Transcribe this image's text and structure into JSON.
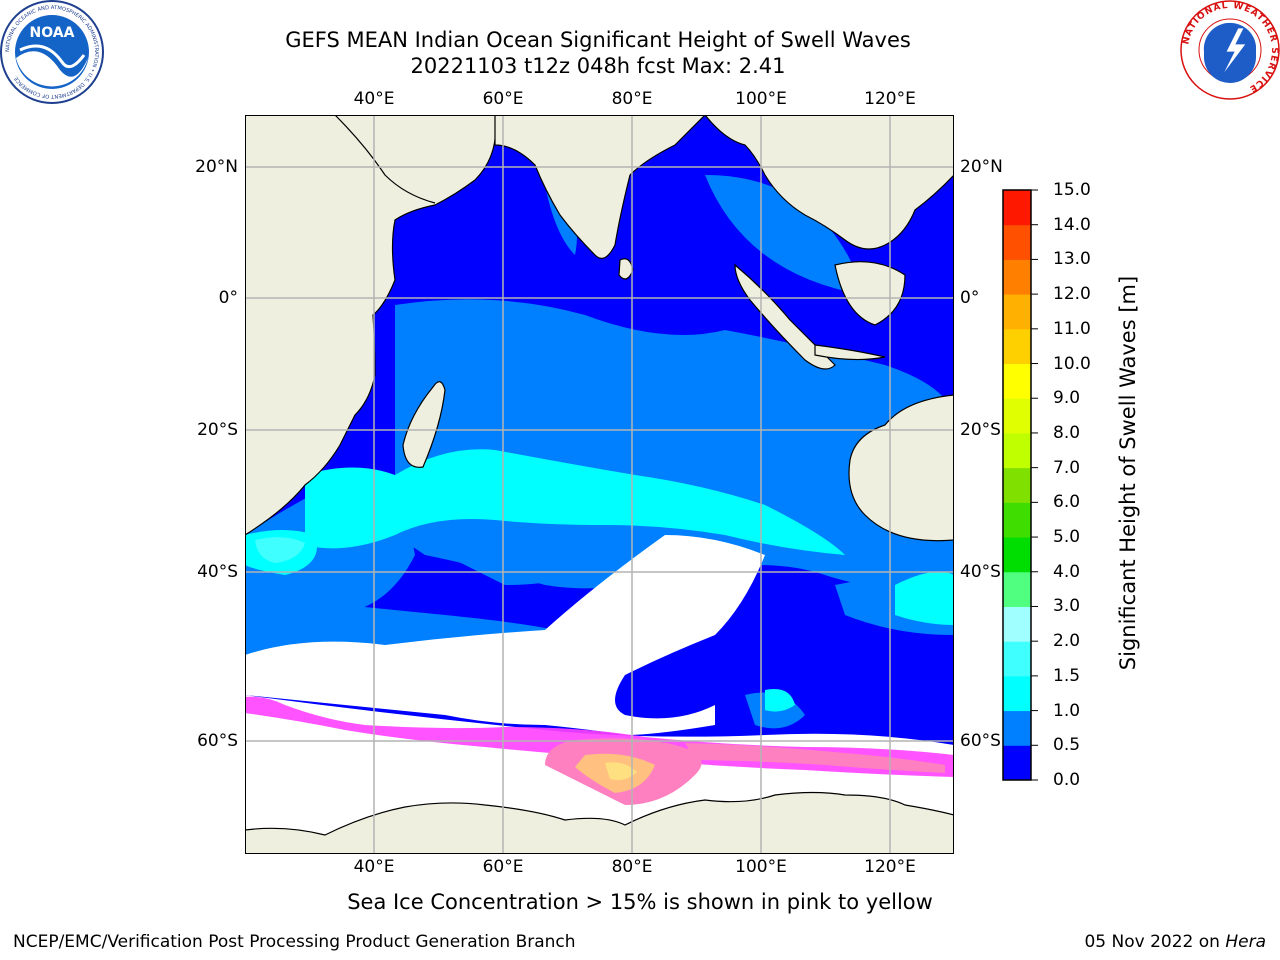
{
  "title": {
    "line1": "GEFS MEAN Indian Ocean Significant Height of Swell Waves",
    "line2": "20221103 t12z 048h fcst   Max: 2.41"
  },
  "logos": {
    "noaa_text": "NOAA",
    "noaa_ring": "NATIONAL OCEANIC AND ATMOSPHERIC ADMINISTRATION • U.S. DEPARTMENT OF COMMERCE",
    "nws_ring": "NATIONAL WEATHER SERVICE"
  },
  "map": {
    "projection": "lat-lon",
    "lon_range": [
      21,
      130
    ],
    "lat_range": [
      -71,
      28
    ],
    "lon_ticks": [
      "40°E",
      "60°E",
      "80°E",
      "100°E",
      "120°E"
    ],
    "lat_ticks": [
      "20°N",
      "0°",
      "20°S",
      "40°S",
      "60°S"
    ],
    "grid": true,
    "colors": {
      "land": "#efefdf",
      "sea_ice_zone": "#ffffff",
      "coast": "#000000",
      "grid": "#b4b4b4"
    }
  },
  "colorbar": {
    "label": "Significant Height of Swell Waves [m]",
    "ticks": [
      "0.0",
      "0.5",
      "1.0",
      "1.5",
      "2.0",
      "3.0",
      "4.0",
      "5.0",
      "6.0",
      "7.0",
      "8.0",
      "9.0",
      "10.0",
      "11.0",
      "12.0",
      "13.0",
      "14.0",
      "15.0"
    ],
    "colors": [
      "#0000ff",
      "#0080ff",
      "#00ffff",
      "#40ffff",
      "#a0ffff",
      "#50ff80",
      "#00dd00",
      "#40dd00",
      "#80e000",
      "#c0ff00",
      "#e0ff00",
      "#ffff00",
      "#ffd000",
      "#ffb000",
      "#ff8000",
      "#ff5000",
      "#ff1800"
    ]
  },
  "ice_note": "Sea Ice Concentration > 15% is shown in pink to yellow",
  "footer": {
    "left": "NCEP/EMC/Verification Post Processing Product Generation Branch",
    "date": "05 Nov 2022 on ",
    "machine": "Hera"
  }
}
